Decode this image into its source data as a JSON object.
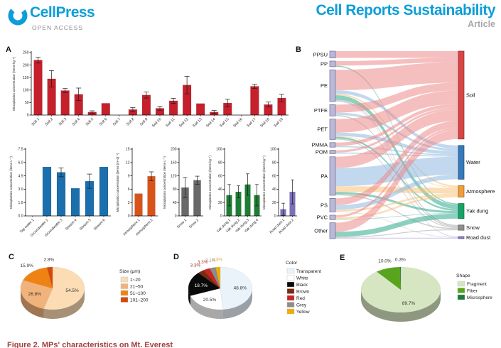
{
  "header": {
    "publisher": "CellPress",
    "open_access": "OPEN ACCESS",
    "journal": "Cell Reports Sustainability",
    "article_type": "Article",
    "brand_blue": "#0d9ed9",
    "gray": "#8f8f8f"
  },
  "panels": {
    "a": "A",
    "b": "B",
    "c": "C",
    "d": "D",
    "e": "E"
  },
  "caption": "Figure 2. MPs' characteristics on Mt. Everest",
  "caption_color": "#a04040",
  "chart_data": [
    {
      "id": "soil",
      "type": "bar",
      "ylabel": "Microplastics concentration (items·kg⁻¹)",
      "ylim": [
        0,
        250
      ],
      "yticks": [
        0,
        50,
        100,
        150,
        200,
        250
      ],
      "ytick_labels": [
        "0",
        "50",
        "100",
        "150",
        "200",
        "250"
      ],
      "bar_color": "#c5202c",
      "categories": [
        "Soil 1",
        "Soil 2",
        "Soil 3",
        "Soil 4",
        "Soil 5",
        "Soil 6",
        "Soil 7",
        "Soil 8",
        "Soil 9",
        "Soil 10",
        "Soil 11",
        "Soil 12",
        "Soil 13",
        "Soil 14",
        "Soil 15",
        "Soil 16",
        "Soil 17",
        "Soil 18",
        "Soil 19"
      ],
      "values": [
        220,
        145,
        98,
        83,
        12,
        47,
        0,
        22,
        80,
        27,
        57,
        120,
        46,
        12,
        48,
        0,
        115,
        42,
        68
      ],
      "errors": [
        12,
        33,
        8,
        25,
        5,
        0,
        0,
        8,
        12,
        8,
        10,
        35,
        0,
        6,
        15,
        0,
        8,
        10,
        15
      ]
    },
    {
      "id": "water",
      "type": "bar",
      "ylabel": "Microplastics concentration (items·L⁻¹)",
      "ylim": [
        0,
        7.5
      ],
      "yticks": [
        0,
        1.5,
        3,
        4.5,
        6,
        7.5
      ],
      "ytick_labels": [
        "0.0",
        "1.5",
        "3.0",
        "4.5",
        "6.0",
        "7.5"
      ],
      "bar_color": "#1c6fad",
      "categories": [
        "Tap water 1",
        "Groundwater 2",
        "Groundwater 3",
        "Stream 4",
        "Stream 5",
        "Stream 6"
      ],
      "values": [
        0,
        5.5,
        4.9,
        3.1,
        3.9,
        5.5
      ],
      "errors": [
        0,
        0,
        0.5,
        0,
        0.8,
        0
      ]
    },
    {
      "id": "atmosphere",
      "type": "bar",
      "ylabel": "Microplastics concentration (items·(m²·d)⁻¹)",
      "ylim": [
        0,
        15
      ],
      "yticks": [
        0,
        3,
        6,
        9,
        12,
        15
      ],
      "ytick_labels": [
        "0",
        "3",
        "6",
        "9",
        "12",
        "15"
      ],
      "bar_color": "#d95319",
      "categories": [
        "Atmosphere 1",
        "Atmosphere 2"
      ],
      "values": [
        5.0,
        8.9
      ],
      "errors": [
        0,
        1.0
      ]
    },
    {
      "id": "snow",
      "type": "bar",
      "ylabel": "Microplastics concentration (items·L⁻¹)",
      "ylim": [
        0,
        200
      ],
      "yticks": [
        0,
        40,
        80,
        120,
        160,
        200
      ],
      "ytick_labels": [
        "0",
        "40",
        "80",
        "120",
        "160",
        "200"
      ],
      "bar_color": "#686868",
      "categories": [
        "Snow 1",
        "Snow 2"
      ],
      "values": [
        85,
        107
      ],
      "errors": [
        30,
        12
      ]
    },
    {
      "id": "yak",
      "type": "bar",
      "ylabel": "Microplastics concentration (items·kg⁻¹)",
      "ylim": [
        0,
        100
      ],
      "yticks": [
        0,
        20,
        40,
        60,
        80,
        100
      ],
      "ytick_labels": [
        "0",
        "20",
        "40",
        "60",
        "80",
        "100"
      ],
      "bar_color": "#1e7d34",
      "categories": [
        "Yak dung 1",
        "Yak dung 2",
        "Yak dung 3",
        "Yak dung 4"
      ],
      "values": [
        31,
        36,
        47,
        31
      ],
      "errors": [
        16,
        9,
        16,
        16
      ]
    },
    {
      "id": "road",
      "type": "bar",
      "ylabel": "Microplastics concentration (items·kg⁻¹)",
      "ylim": [
        0,
        100
      ],
      "yticks": [
        0,
        20,
        40,
        60,
        80,
        100
      ],
      "ytick_labels": [
        "0",
        "20",
        "40",
        "60",
        "80",
        "100"
      ],
      "bar_color": "#7d6fb8",
      "categories": [
        "Road dust 1",
        "Road dust 2"
      ],
      "values": [
        10,
        36
      ],
      "errors": [
        9,
        18
      ]
    },
    {
      "id": "sankey",
      "type": "sankey",
      "left_node_color": "#b9b7da",
      "left_node_stroke": "#6b6b8a",
      "left_nodes": [
        {
          "name": "PPSU",
          "value": 3
        },
        {
          "name": "PP",
          "value": 2.5
        },
        {
          "name": "PE",
          "value": 14
        },
        {
          "name": "PTFE",
          "value": 5
        },
        {
          "name": "PET",
          "value": 9
        },
        {
          "name": "PMMA",
          "value": 2
        },
        {
          "name": "POM",
          "value": 1.5
        },
        {
          "name": "PA",
          "value": 17
        },
        {
          "name": "PS",
          "value": 6
        },
        {
          "name": "PVC",
          "value": 2
        },
        {
          "name": "Other",
          "value": 7
        }
      ],
      "right_nodes": [
        {
          "name": "Soil",
          "value": 39,
          "color": "#d94545"
        },
        {
          "name": "Water",
          "value": 15,
          "color": "#3579b8"
        },
        {
          "name": "Atmosphere",
          "value": 5.1,
          "color": "#f09d3a"
        },
        {
          "name": "Yak dung",
          "value": 6.7,
          "color": "#17a366"
        },
        {
          "name": "Snow",
          "value": 2.3,
          "color": "#8f8f8f"
        },
        {
          "name": "Road dust",
          "value": 0.9,
          "color": "#8d7cc4"
        }
      ],
      "link_colors": {
        "Soil": "#ed8a8a",
        "Water": "#8fb8e0",
        "Atmosphere": "#f7c27a",
        "Yak dung": "#2fa98c",
        "Snow": "#a8a8a8",
        "Road dust": "#b3a6d6"
      },
      "links": [
        {
          "source": "PPSU",
          "target": "Soil",
          "value": 3
        },
        {
          "source": "PP",
          "target": "Soil",
          "value": 2
        },
        {
          "source": "PP",
          "target": "Yak dung",
          "value": 0.5
        },
        {
          "source": "PE",
          "target": "Soil",
          "value": 9
        },
        {
          "source": "PE",
          "target": "Water",
          "value": 1.5
        },
        {
          "source": "PE",
          "target": "Atmosphere",
          "value": 0.7
        },
        {
          "source": "PE",
          "target": "Yak dung",
          "value": 2
        },
        {
          "source": "PE",
          "target": "Snow",
          "value": 0.5
        },
        {
          "source": "PE",
          "target": "Road dust",
          "value": 0.3
        },
        {
          "source": "PTFE",
          "target": "Soil",
          "value": 3.5
        },
        {
          "source": "PTFE",
          "target": "Water",
          "value": 1
        },
        {
          "source": "PTFE",
          "target": "Snow",
          "value": 0.5
        },
        {
          "source": "PET",
          "target": "Soil",
          "value": 6
        },
        {
          "source": "PET",
          "target": "Water",
          "value": 1.5
        },
        {
          "source": "PET",
          "target": "Atmosphere",
          "value": 0.3
        },
        {
          "source": "PET",
          "target": "Yak dung",
          "value": 0.8
        },
        {
          "source": "PET",
          "target": "Snow",
          "value": 0.4
        },
        {
          "source": "PMMA",
          "target": "Soil",
          "value": 1.5
        },
        {
          "source": "PMMA",
          "target": "Water",
          "value": 0.5
        },
        {
          "source": "POM",
          "target": "Soil",
          "value": 1
        },
        {
          "source": "POM",
          "target": "Water",
          "value": 0.5
        },
        {
          "source": "PA",
          "target": "Soil",
          "value": 5
        },
        {
          "source": "PA",
          "target": "Water",
          "value": 8
        },
        {
          "source": "PA",
          "target": "Atmosphere",
          "value": 2.5
        },
        {
          "source": "PA",
          "target": "Yak dung",
          "value": 1
        },
        {
          "source": "PA",
          "target": "Snow",
          "value": 0.5
        },
        {
          "source": "PS",
          "target": "Soil",
          "value": 3
        },
        {
          "source": "PS",
          "target": "Water",
          "value": 2
        },
        {
          "source": "PS",
          "target": "Atmosphere",
          "value": 0.8
        },
        {
          "source": "PS",
          "target": "Road dust",
          "value": 0.2
        },
        {
          "source": "PVC",
          "target": "Soil",
          "value": 1
        },
        {
          "source": "PVC",
          "target": "Atmosphere",
          "value": 0.8
        },
        {
          "source": "PVC",
          "target": "Yak dung",
          "value": 0.2
        },
        {
          "source": "Other",
          "target": "Soil",
          "value": 4
        },
        {
          "source": "Other",
          "target": "Yak dung",
          "value": 2.2
        },
        {
          "source": "Other",
          "target": "Snow",
          "value": 0.4
        },
        {
          "source": "Other",
          "target": "Road dust",
          "value": 0.4
        }
      ]
    },
    {
      "id": "pie-size",
      "type": "pie",
      "legend_title": "Size (μm)",
      "labels": [
        "1~20",
        "21~50",
        "51~100",
        "101~200"
      ],
      "values": [
        54.5,
        26.8,
        15.9,
        2.8
      ],
      "pct_labels": [
        "54.5%",
        "26.8%",
        "15.9%",
        "2.8%"
      ],
      "colors": [
        "#fbdcb4",
        "#f2b27c",
        "#ee8313",
        "#d2490a"
      ],
      "label_inside": [
        true,
        true,
        false,
        false
      ],
      "label_colors": [
        "#333333",
        "#333333",
        "#333333",
        "#333333"
      ]
    },
    {
      "id": "pie-color",
      "type": "pie",
      "legend_title": "Color",
      "labels": [
        "Transparent",
        "White",
        "Black",
        "Brown",
        "Red",
        "Grey",
        "Yellow"
      ],
      "values": [
        48.8,
        20.5,
        18.7,
        3.3,
        3.3,
        3.1,
        2.3
      ],
      "pct_labels": [
        "48.8%",
        "20.5%",
        "18.7%",
        "3.3%",
        "3.3%",
        "3.1%",
        "2.3%"
      ],
      "colors": [
        "#eaf3fa",
        "#ffffff",
        "#0a0a0a",
        "#7b2a10",
        "#cc2222",
        "#8c8c8c",
        "#f0ad00"
      ],
      "label_inside": [
        true,
        true,
        true,
        false,
        false,
        false,
        false
      ],
      "label_colors": [
        "#333333",
        "#333333",
        "#ffffff",
        "#8a3a1a",
        "#d03030",
        "#8a8a8a",
        "#e8a520"
      ]
    },
    {
      "id": "pie-shape",
      "type": "pie",
      "legend_title": "Shape",
      "labels": [
        "Fragment",
        "Fiber",
        "Microsphere"
      ],
      "values": [
        89.7,
        10.0,
        0.3
      ],
      "pct_labels": [
        "89.7%",
        "10.0%",
        "0.3%"
      ],
      "colors": [
        "#d7e6c2",
        "#58a51d",
        "#1a7a40"
      ],
      "label_inside": [
        true,
        false,
        false
      ],
      "label_colors": [
        "#333333",
        "#333333",
        "#333333"
      ]
    }
  ]
}
